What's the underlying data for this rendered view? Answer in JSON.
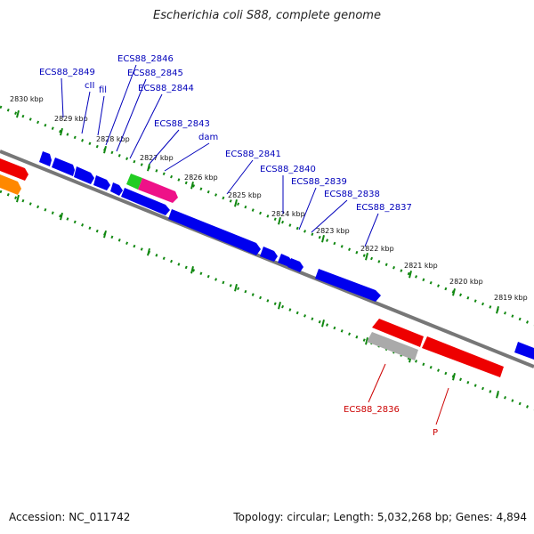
{
  "title": "Escherichia coli S88, complete genome",
  "footer": {
    "accession": "Accession: NC_011742",
    "summary": "Topology: circular; Length: 5,032,268 bp; Genes: 4,894"
  },
  "colors": {
    "forward": "#0000ee",
    "reverse": "#ee0000",
    "highlight": "#ee1188",
    "green": "#22cc22",
    "orange": "#ff8800",
    "gray": "#aaaaaa",
    "ticks": "#118811",
    "label_fwd": "#0000bb",
    "label_rev": "#cc0000"
  },
  "kbp_labels": [
    "2830 kbp",
    "2829 kbp",
    "2828 kbp",
    "2827 kbp",
    "2826 kbp",
    "2825 kbp",
    "2824 kbp",
    "2823 kbp",
    "2822 kbp",
    "2821 kbp",
    "2820 kbp",
    "2819 kbp"
  ],
  "gene_labels_forward": [
    "ECS88_2849",
    "cII",
    "fil",
    "ECS88_2846",
    "ECS88_2845",
    "ECS88_2844",
    "ECS88_2843",
    "dam",
    "ECS88_2841",
    "ECS88_2840",
    "ECS88_2839",
    "ECS88_2838",
    "ECS88_2837"
  ],
  "gene_labels_reverse": [
    "ECS88_2836",
    "P"
  ]
}
